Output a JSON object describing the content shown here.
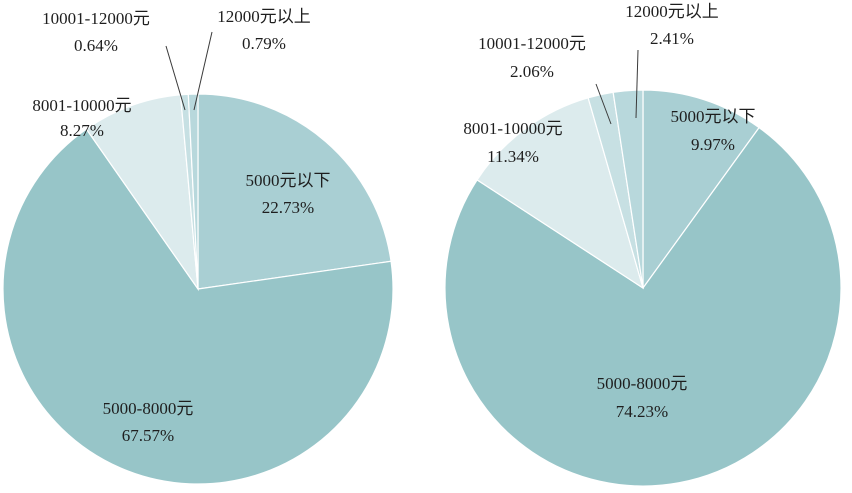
{
  "chart_data": [
    {
      "type": "pie",
      "title": "",
      "slices": [
        {
          "category": "5000元以下",
          "percent_label": "22.73%",
          "value": 22.73,
          "color": "#a9cfd3"
        },
        {
          "category": "5000-8000元",
          "percent_label": "67.57%",
          "value": 67.57,
          "color": "#97c5c8"
        },
        {
          "category": "8001-10000元",
          "percent_label": "8.27%",
          "value": 8.27,
          "color": "#dcebed"
        },
        {
          "category": "10001-12000元",
          "percent_label": "0.64%",
          "value": 0.64,
          "color": "#c7e0e3"
        },
        {
          "category": "12000元以上",
          "percent_label": "0.79%",
          "value": 0.79,
          "color": "#b8d8dc"
        }
      ]
    },
    {
      "type": "pie",
      "title": "",
      "slices": [
        {
          "category": "5000元以下",
          "percent_label": "9.97%",
          "value": 9.97,
          "color": "#a9cfd3"
        },
        {
          "category": "5000-8000元",
          "percent_label": "74.23%",
          "value": 74.23,
          "color": "#97c5c8"
        },
        {
          "category": "8001-10000元",
          "percent_label": "11.34%",
          "value": 11.34,
          "color": "#dcebed"
        },
        {
          "category": "10001-12000元",
          "percent_label": "2.06%",
          "value": 2.06,
          "color": "#c7e0e3"
        },
        {
          "category": "12000元以上",
          "percent_label": "2.41%",
          "value": 2.41,
          "color": "#b8d8dc"
        }
      ]
    }
  ]
}
